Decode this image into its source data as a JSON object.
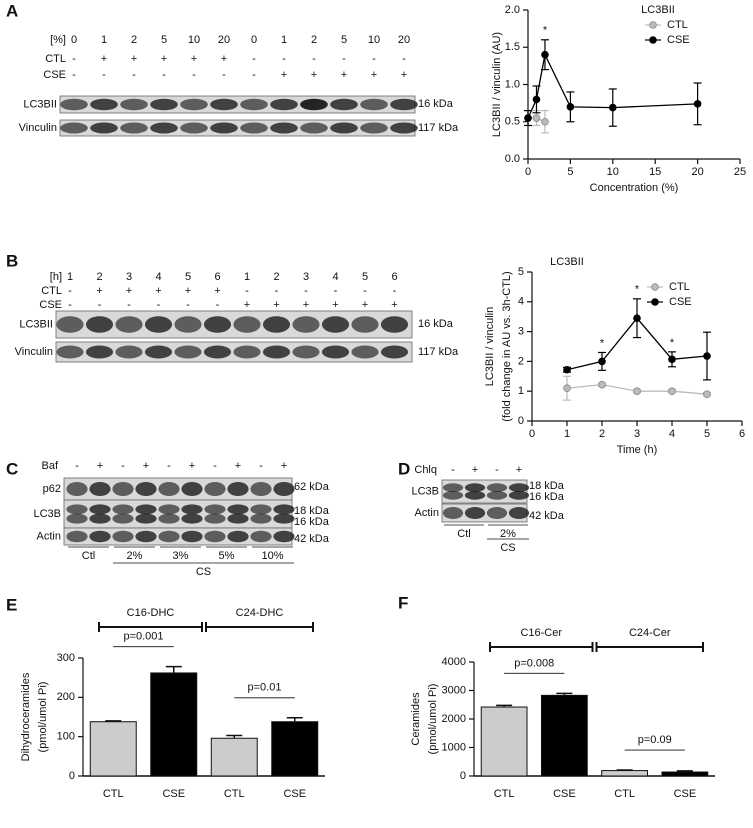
{
  "panel_labels": [
    "A",
    "B",
    "C",
    "D",
    "E",
    "F"
  ],
  "blots": {
    "A": {
      "header": "[%]",
      "lanes": [
        0,
        1,
        2,
        5,
        10,
        20,
        0,
        1,
        2,
        5,
        10,
        20
      ],
      "rows": [
        {
          "label": "CTL",
          "marks": [
            "-",
            "+",
            "+",
            "+",
            "+",
            "+",
            "-",
            "-",
            "-",
            "-",
            "-",
            "-"
          ]
        },
        {
          "label": "CSE",
          "marks": [
            "-",
            "-",
            "-",
            "-",
            "-",
            "-",
            "-",
            "+",
            "+",
            "+",
            "+",
            "+"
          ]
        }
      ],
      "bands": [
        {
          "label": "LC3BII",
          "kda": [
            "16 kDa"
          ]
        },
        {
          "label": "Vinculin",
          "kda": [
            "117 kDa"
          ]
        }
      ]
    },
    "B": {
      "header": "[h]",
      "lanes": [
        1,
        2,
        3,
        4,
        5,
        6,
        1,
        2,
        3,
        4,
        5,
        6
      ],
      "rows": [
        {
          "label": "CTL",
          "marks": [
            "-",
            "+",
            "+",
            "+",
            "+",
            "+",
            "-",
            "-",
            "-",
            "-",
            "-",
            "-"
          ]
        },
        {
          "label": "CSE",
          "marks": [
            "-",
            "-",
            "-",
            "-",
            "-",
            "-",
            "+",
            "+",
            "+",
            "+",
            "+",
            "+"
          ]
        }
      ],
      "bands": [
        {
          "label": "LC3BII",
          "kda": [
            "16 kDa"
          ]
        },
        {
          "label": "Vinculin",
          "kda": [
            "117 kDa"
          ]
        }
      ]
    },
    "C": {
      "header": "Baf",
      "marks": [
        "-",
        "+",
        "-",
        "+",
        "-",
        "+",
        "-",
        "+",
        "-",
        "+"
      ],
      "bands": [
        {
          "label": "p62",
          "kda": [
            "62 kDa"
          ]
        },
        {
          "label": "LC3B",
          "kda": [
            "18 kDa",
            "16 kDa"
          ]
        },
        {
          "label": "Actin",
          "kda": [
            "42 kDa"
          ]
        }
      ],
      "groups": [
        "Ctl",
        "2%",
        "3%",
        "5%",
        "10%"
      ],
      "group_label": "CS"
    },
    "D": {
      "header": "Chlq",
      "marks": [
        "-",
        "+",
        "-",
        "+"
      ],
      "bands": [
        {
          "label": "LC3B",
          "kda": [
            "18 kDa",
            "16 kDa"
          ]
        },
        {
          "label": "Actin",
          "kda": [
            "42 kDa"
          ]
        }
      ],
      "groups": [
        "Ctl",
        "2%"
      ],
      "group_label": "CS"
    }
  },
  "chart_data": [
    {
      "type": "line",
      "title": "LC3BII",
      "xlabel": "Concentration (%)",
      "ylabel": [
        "LC3BII / vinculin (AU)"
      ],
      "xlim": [
        0,
        25
      ],
      "xticks": [
        0,
        5,
        10,
        15,
        20,
        25
      ],
      "ylim": [
        0,
        2
      ],
      "yticks": [
        {
          "value": 0,
          "label": "0.0"
        },
        {
          "value": 0.5,
          "label": "0.5"
        },
        {
          "value": 1,
          "label": "1.0"
        },
        {
          "value": 1.5,
          "label": "1.5"
        },
        {
          "value": 2,
          "label": "2.0"
        }
      ],
      "legend": "upper right",
      "series": [
        {
          "name": "CTL",
          "color": "#bbbbbb",
          "x": [
            0,
            1,
            2
          ],
          "values": [
            0.55,
            0.55,
            0.5
          ],
          "error": [
            0.1,
            0.1,
            0.15
          ]
        },
        {
          "name": "CSE",
          "color": "#000000",
          "x": [
            0,
            1,
            2,
            5,
            10,
            20
          ],
          "values": [
            0.55,
            0.8,
            1.4,
            0.7,
            0.69,
            0.74
          ],
          "error": [
            0.1,
            0.18,
            0.2,
            0.2,
            0.25,
            0.28
          ]
        }
      ],
      "annotations": [
        {
          "x": 2,
          "text": "*"
        }
      ]
    },
    {
      "type": "line",
      "title": "LC3BII",
      "xlabel": "Time (h)",
      "ylabel": [
        "LC3BII / vinculin",
        "(fold change in AU vs. 3h-CTL)"
      ],
      "xlim": [
        0,
        6
      ],
      "xticks": [
        0,
        1,
        2,
        3,
        4,
        5,
        6
      ],
      "ylim": [
        0,
        5
      ],
      "yticks": [
        0,
        1,
        2,
        3,
        4,
        5
      ],
      "legend": "upper right",
      "series": [
        {
          "name": "CTL",
          "color": "#bbbbbb",
          "x": [
            1,
            2,
            3,
            4,
            5
          ],
          "values": [
            1.1,
            1.22,
            1.0,
            1.0,
            0.9
          ],
          "error": [
            0.4,
            0.05,
            0.05,
            0.05,
            0.05
          ]
        },
        {
          "name": "CSE",
          "color": "#000000",
          "x": [
            1,
            2,
            3,
            4,
            5
          ],
          "values": [
            1.72,
            2.0,
            3.45,
            2.07,
            2.18
          ],
          "error": [
            0.08,
            0.3,
            0.65,
            0.25,
            0.8
          ]
        }
      ],
      "annotations": [
        {
          "x": 2,
          "text": "*"
        },
        {
          "x": 3,
          "text": "*"
        },
        {
          "x": 4,
          "text": "*"
        }
      ]
    },
    {
      "type": "bar",
      "ylabel": [
        "Dihydroceramides",
        "(pmol/umol Pi)"
      ],
      "categories": [
        "CTL",
        "CSE",
        "CTL",
        "CSE"
      ],
      "values": [
        138,
        262,
        96,
        138
      ],
      "error": [
        2,
        16,
        7,
        10
      ],
      "colors": [
        "#cccccc",
        "#000000",
        "#cccccc",
        "#000000"
      ],
      "ylim": [
        0,
        300
      ],
      "yticks": [
        0,
        100,
        200,
        300
      ],
      "groups": [
        "C16-DHC",
        "C24-DHC"
      ],
      "p_values": [
        "p=0.001",
        "p=0.01"
      ]
    },
    {
      "type": "bar",
      "ylabel": [
        "Ceramides",
        "(pmol/umol Pi)"
      ],
      "categories": [
        "CTL",
        "CSE",
        "CTL",
        "CSE"
      ],
      "values": [
        2420,
        2830,
        190,
        140
      ],
      "error": [
        60,
        70,
        20,
        40
      ],
      "colors": [
        "#cccccc",
        "#000000",
        "#cccccc",
        "#000000"
      ],
      "ylim": [
        0,
        4000
      ],
      "yticks": [
        0,
        1000,
        2000,
        3000,
        4000
      ],
      "groups": [
        "C16-Cer",
        "C24-Cer"
      ],
      "p_values": [
        "p=0.008",
        "p=0.09"
      ]
    }
  ]
}
